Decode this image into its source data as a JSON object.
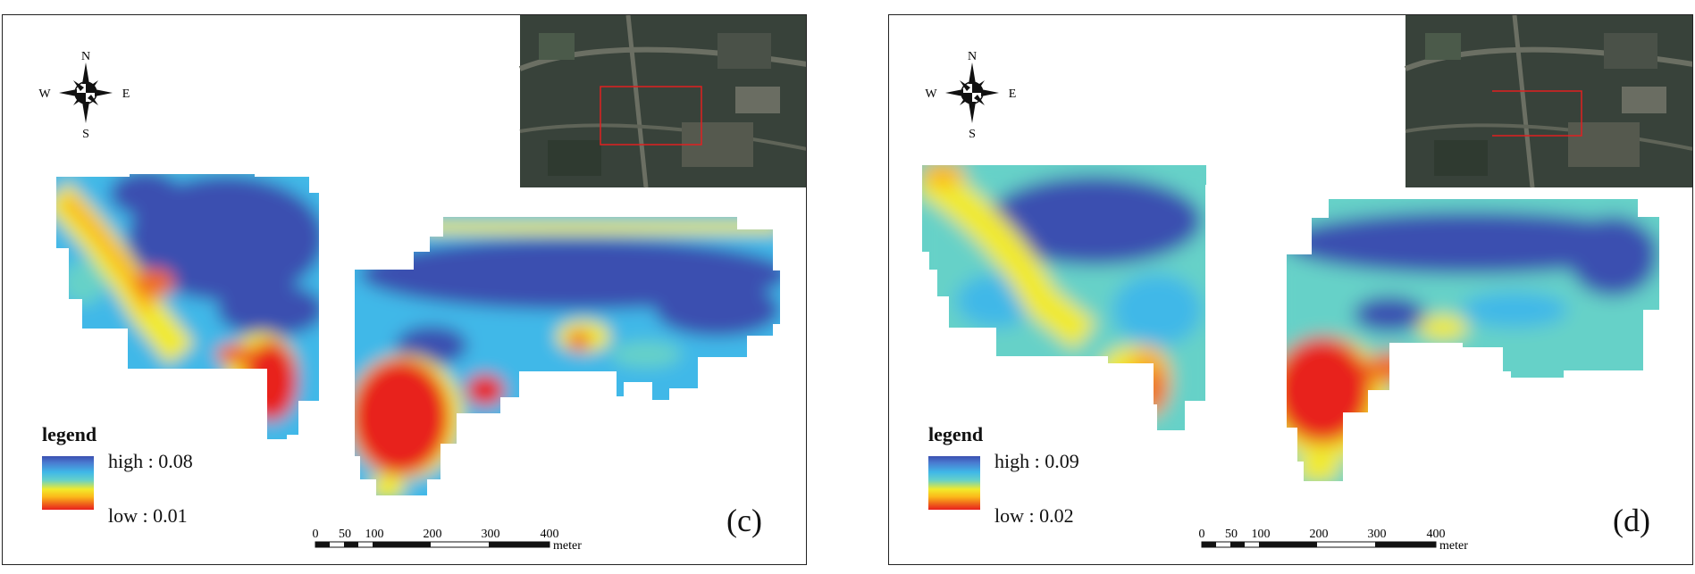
{
  "panels": [
    {
      "id": "c",
      "label": "(c)",
      "legend": {
        "title": "legend",
        "high": "high : 0.08",
        "low": "low : 0.01"
      },
      "compass": {
        "n": "N",
        "s": "S",
        "e": "E",
        "w": "W"
      },
      "scale": {
        "ticks": [
          "0",
          "50",
          "100",
          "200",
          "300",
          "400"
        ],
        "unit": "meter"
      }
    },
    {
      "id": "d",
      "label": "(d)",
      "legend": {
        "title": "legend",
        "high": "high : 0.09",
        "low": "low : 0.02"
      },
      "compass": {
        "n": "N",
        "s": "S",
        "e": "E",
        "w": "W"
      },
      "scale": {
        "ticks": [
          "0",
          "50",
          "100",
          "200",
          "300",
          "400"
        ],
        "unit": "meter"
      }
    }
  ],
  "colors": {
    "high": "#3a4fb0",
    "mid_high": "#40b8e8",
    "mid": "#66d1c8",
    "mid_low": "#f2ea2a",
    "low_orange": "#f06a1a",
    "low": "#e8201e"
  }
}
